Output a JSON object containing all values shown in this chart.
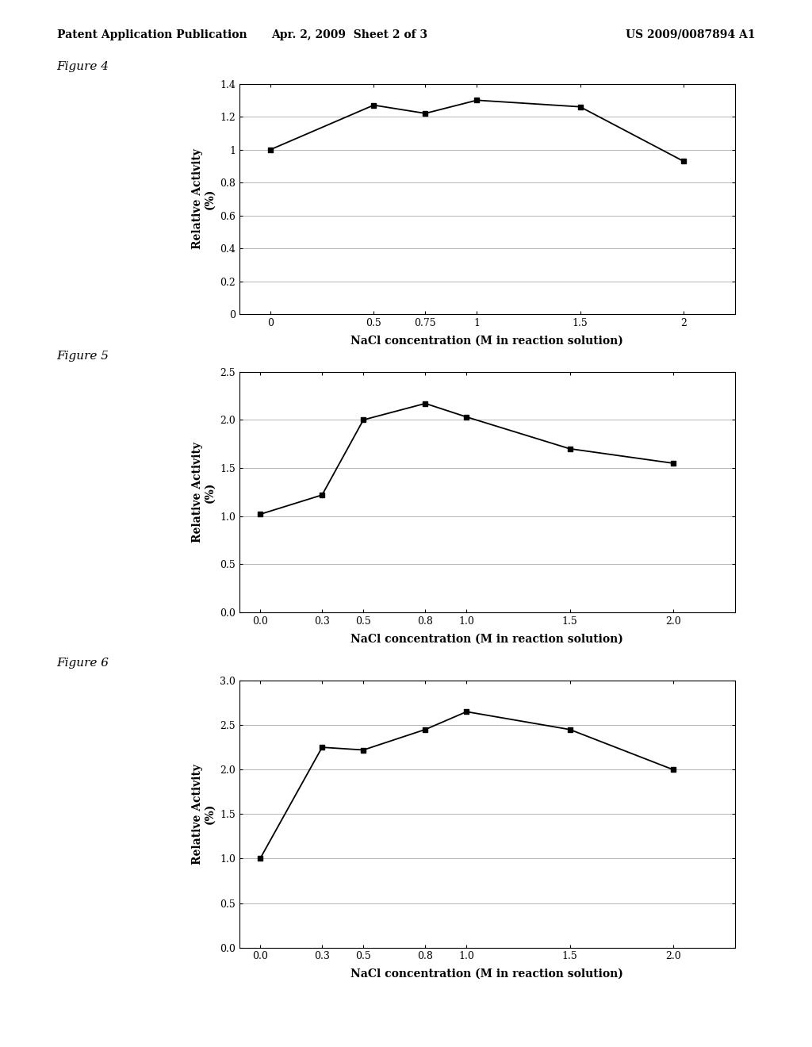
{
  "header_left": "Patent Application Publication",
  "header_center": "Apr. 2, 2009  Sheet 2 of 3",
  "header_right": "US 2009/0087894 A1",
  "fig4": {
    "label": "Figure 4",
    "x": [
      0,
      0.5,
      0.75,
      1,
      1.5,
      2
    ],
    "y": [
      1.0,
      1.27,
      1.22,
      1.3,
      1.26,
      0.93
    ],
    "xlabel": "NaCl concentration (M in reaction solution)",
    "ylabel": "Relative Activity\n(%)",
    "xlim": [
      -0.15,
      2.25
    ],
    "ylim": [
      0,
      1.4
    ],
    "yticks": [
      0,
      0.2,
      0.4,
      0.6,
      0.8,
      1.0,
      1.2,
      1.4
    ],
    "ytick_labels": [
      "0",
      "0.2",
      "0.4",
      "0.6",
      "0.8",
      "1",
      "1.2",
      "1.4"
    ],
    "xticks": [
      0,
      0.5,
      0.75,
      1,
      1.5,
      2
    ],
    "xtick_labels": [
      "0",
      "0.5",
      "0.75",
      "1",
      "1.5",
      "2"
    ]
  },
  "fig5": {
    "label": "Figure 5",
    "x": [
      0.0,
      0.3,
      0.5,
      0.8,
      1.0,
      1.5,
      2.0
    ],
    "y": [
      1.02,
      1.22,
      2.0,
      2.17,
      2.03,
      1.7,
      1.55
    ],
    "xlabel": "NaCl concentration (M in reaction solution)",
    "ylabel": "Relative Activity\n(%)",
    "xlim": [
      -0.1,
      2.3
    ],
    "ylim": [
      0.0,
      2.5
    ],
    "yticks": [
      0.0,
      0.5,
      1.0,
      1.5,
      2.0,
      2.5
    ],
    "ytick_labels": [
      "0.0",
      "0.5",
      "1.0",
      "1.5",
      "2.0",
      "2.5"
    ],
    "xticks": [
      0.0,
      0.3,
      0.5,
      0.8,
      1.0,
      1.5,
      2.0
    ],
    "xtick_labels": [
      "0.0",
      "0.3",
      "0.5",
      "0.8",
      "1.0",
      "1.5",
      "2.0"
    ]
  },
  "fig6": {
    "label": "Figure 6",
    "x": [
      0.0,
      0.3,
      0.5,
      0.8,
      1.0,
      1.5,
      2.0
    ],
    "y": [
      1.0,
      2.25,
      2.22,
      2.45,
      2.65,
      2.45,
      2.0
    ],
    "xlabel": "NaCl concentration (M in reaction solution)",
    "ylabel": "Relative Activity\n(%)",
    "xlim": [
      -0.1,
      2.3
    ],
    "ylim": [
      0.0,
      3.0
    ],
    "yticks": [
      0.0,
      0.5,
      1.0,
      1.5,
      2.0,
      2.5,
      3.0
    ],
    "ytick_labels": [
      "0.0",
      "0.5",
      "1.0",
      "1.5",
      "2.0",
      "2.5",
      "3.0"
    ],
    "xticks": [
      0.0,
      0.3,
      0.5,
      0.8,
      1.0,
      1.5,
      2.0
    ],
    "xtick_labels": [
      "0.0",
      "0.3",
      "0.5",
      "0.8",
      "1.0",
      "1.5",
      "2.0"
    ]
  },
  "bg_color": "#ffffff",
  "line_color": "#000000",
  "marker": "s",
  "marker_size": 5,
  "line_width": 1.3,
  "header_fontsize": 10,
  "fig_label_fontsize": 11,
  "tick_fontsize": 9,
  "axis_label_fontsize": 10
}
